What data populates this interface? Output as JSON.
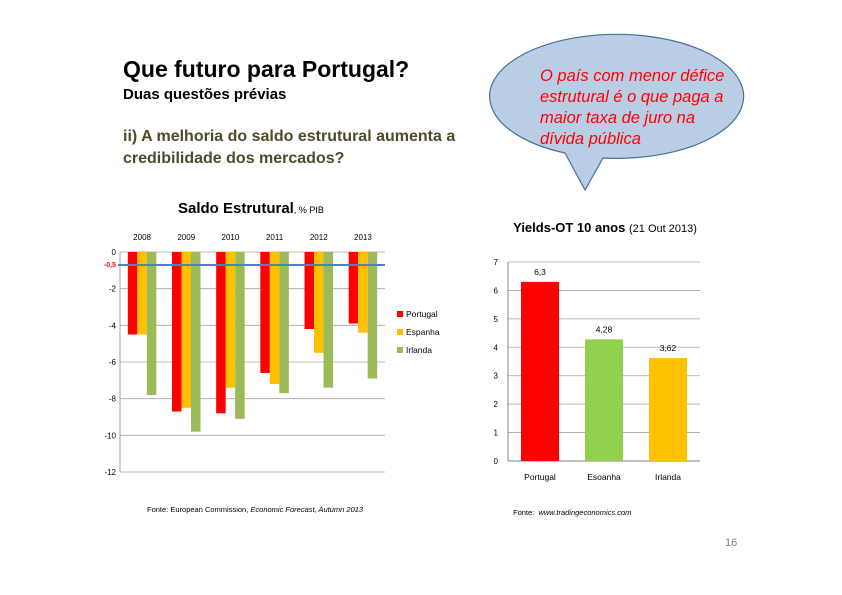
{
  "slide": {
    "title": "Que futuro para Portugal?",
    "subtitle": "Duas questões prévias",
    "question": "ii) A melhoria do saldo estrutural aumenta a credibilidade dos mercados?",
    "callout": "O país com menor défice estrutural é o que paga a maior taxa de juro na dívida pública",
    "page_number": "16",
    "colors": {
      "bubble_fill": "#b9cde5",
      "bubble_stroke": "#41719c",
      "callout_text": "#ff0000"
    }
  },
  "chart_data": [
    {
      "type": "bar",
      "title": "Saldo Estrutural",
      "title_suffix": ", % PIB",
      "categories": [
        "2008",
        "2009",
        "2010",
        "2011",
        "2012",
        "2013"
      ],
      "series": [
        {
          "name": "Portugal",
          "color": "#ff0000",
          "values": [
            -4.5,
            -8.7,
            -8.8,
            -6.6,
            -4.2,
            -3.9
          ]
        },
        {
          "name": "Espanha",
          "color": "#ffc000",
          "values": [
            -4.5,
            -8.5,
            -7.4,
            -7.2,
            -5.5,
            -4.4
          ]
        },
        {
          "name": "Irlanda",
          "color": "#9bbb59",
          "values": [
            -7.8,
            -9.8,
            -9.1,
            -7.7,
            -7.4,
            -6.9
          ]
        }
      ],
      "ylim": [
        -12,
        0
      ],
      "yticks": [
        "0",
        "-2",
        "-4",
        "-6",
        "-8",
        "-10",
        "-12"
      ],
      "reference_line": {
        "value": -0.5,
        "label": "-0,5",
        "color": "#4f81bd"
      },
      "legend": "right",
      "grid": true,
      "source_prefix": "Fonte: European Commission, ",
      "source_italic": "Economic Forecast, Autumn 2013"
    },
    {
      "type": "bar",
      "title": "Yields-OT 10 anos",
      "title_note": "(21 Out 2013)",
      "categories": [
        "Portugal",
        "Esoanha",
        "Irlanda"
      ],
      "values": [
        6.3,
        4.28,
        3.62
      ],
      "labels": [
        "6,3",
        "4,28",
        "3,62"
      ],
      "colors": [
        "#ff0000",
        "#92d050",
        "#ffc000"
      ],
      "ylim": [
        0,
        7
      ],
      "yticks": [
        "0",
        "1",
        "2",
        "3",
        "4",
        "5",
        "6",
        "7"
      ],
      "grid": true,
      "source_prefix": "Fonte:  ",
      "source_italic": "www.tradingeconomics.com"
    }
  ]
}
